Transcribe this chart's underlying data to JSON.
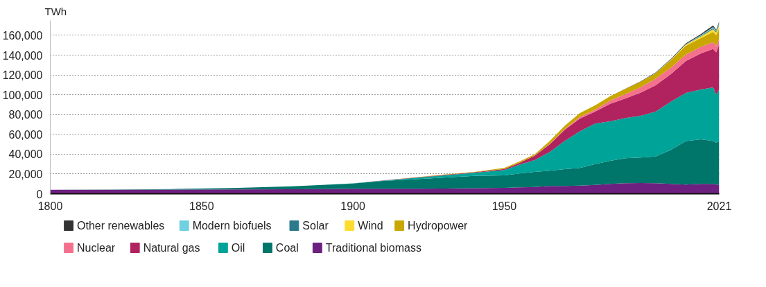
{
  "chart_data": {
    "type": "area",
    "stacked": true,
    "ylabel": "TWh",
    "x": [
      1800,
      1820,
      1840,
      1860,
      1880,
      1890,
      1900,
      1910,
      1920,
      1930,
      1940,
      1950,
      1955,
      1960,
      1965,
      1970,
      1975,
      1980,
      1985,
      1990,
      1995,
      2000,
      2005,
      2010,
      2015,
      2019,
      2020,
      2021
    ],
    "series": [
      {
        "name": "Traditional biomass",
        "color": "#6d2080",
        "values": [
          4000,
          4000,
          4200,
          4300,
          4500,
          4700,
          5000,
          5000,
          5000,
          5300,
          5600,
          6000,
          6400,
          6800,
          7800,
          7800,
          8200,
          8900,
          10000,
          10600,
          10900,
          10600,
          10000,
          9300,
          10000,
          10000,
          9300,
          9300
        ]
      },
      {
        "name": "Coal",
        "color": "#00756a",
        "values": [
          100,
          200,
          600,
          1500,
          3000,
          4200,
          5300,
          8000,
          9600,
          11000,
          12500,
          12600,
          14000,
          15300,
          15500,
          17100,
          17900,
          21000,
          23300,
          25300,
          25700,
          27000,
          34300,
          43900,
          45000,
          43200,
          42300,
          43900
        ]
      },
      {
        "name": "Oil",
        "color": "#00a398",
        "values": [
          0,
          0,
          0,
          0,
          0,
          0,
          200,
          300,
          1400,
          2300,
          3100,
          5300,
          9000,
          11800,
          18800,
          28400,
          37000,
          41000,
          39900,
          40500,
          42100,
          45400,
          48700,
          48700,
          50300,
          54300,
          48500,
          52100
        ]
      },
      {
        "name": "Natural gas",
        "color": "#b0235e",
        "values": [
          0,
          0,
          0,
          0,
          0,
          0,
          0,
          100,
          200,
          500,
          500,
          1100,
          1800,
          4400,
          7800,
          11500,
          12800,
          12000,
          17700,
          19900,
          23300,
          26600,
          27700,
          32100,
          36500,
          38800,
          42700,
          45400
        ]
      },
      {
        "name": "Nuclear",
        "color": "#f4718e",
        "values": [
          0,
          0,
          0,
          0,
          0,
          0,
          0,
          0,
          0,
          0,
          0,
          0,
          0,
          0,
          400,
          700,
          1600,
          2000,
          3300,
          4400,
          5500,
          6600,
          6600,
          6600,
          6600,
          6600,
          6600,
          5500
        ]
      },
      {
        "name": "Hydropower",
        "color": "#c9a700",
        "values": [
          0,
          0,
          0,
          0,
          0,
          0,
          0,
          0,
          200,
          400,
          400,
          1100,
          1300,
          1500,
          2900,
          3300,
          4000,
          4400,
          4400,
          5100,
          5500,
          5500,
          7800,
          8900,
          8900,
          10600,
          10600,
          11100
        ]
      },
      {
        "name": "Wind",
        "color": "#fddc2e",
        "values": [
          0,
          0,
          0,
          0,
          0,
          0,
          0,
          0,
          0,
          0,
          0,
          0,
          0,
          0,
          0,
          0,
          0,
          0,
          0,
          0,
          0,
          100,
          200,
          1000,
          1600,
          2700,
          2800,
          2900
        ]
      },
      {
        "name": "Solar",
        "color": "#2a7a8c",
        "values": [
          0,
          0,
          0,
          0,
          0,
          0,
          0,
          0,
          0,
          0,
          0,
          0,
          0,
          0,
          0,
          0,
          0,
          0,
          0,
          0,
          0,
          0,
          0,
          200,
          700,
          1100,
          1000,
          1200
        ]
      },
      {
        "name": "Modern biofuels",
        "color": "#6fd0e0",
        "values": [
          0,
          0,
          0,
          0,
          0,
          0,
          0,
          0,
          0,
          0,
          0,
          0,
          0,
          0,
          0,
          0,
          0,
          0,
          0,
          0,
          0,
          200,
          300,
          400,
          700,
          1100,
          900,
          1000
        ]
      },
      {
        "name": "Other renewables",
        "color": "#333333",
        "values": [
          0,
          0,
          0,
          0,
          0,
          0,
          0,
          0,
          0,
          0,
          0,
          0,
          0,
          0,
          0,
          0,
          0,
          0,
          0,
          300,
          400,
          500,
          600,
          800,
          1100,
          1600,
          800,
          1600
        ]
      }
    ],
    "xlim": [
      1800,
      2021
    ],
    "xticks": [
      1800,
      1850,
      1900,
      1950,
      2021
    ],
    "ylim": [
      0,
      175000
    ],
    "yticks": [
      {
        "value": 0,
        "label": "0"
      },
      {
        "value": 20000,
        "label": "20,000"
      },
      {
        "value": 40000,
        "label": "40,000"
      },
      {
        "value": 60000,
        "label": "60,000"
      },
      {
        "value": 80000,
        "label": "80,000"
      },
      {
        "value": 100000,
        "label": "100,000"
      },
      {
        "value": 120000,
        "label": "120,000"
      },
      {
        "value": 140000,
        "label": "140,000"
      },
      {
        "value": 160000,
        "label": "160,000"
      }
    ],
    "grid": "y",
    "legend": "bottom"
  }
}
